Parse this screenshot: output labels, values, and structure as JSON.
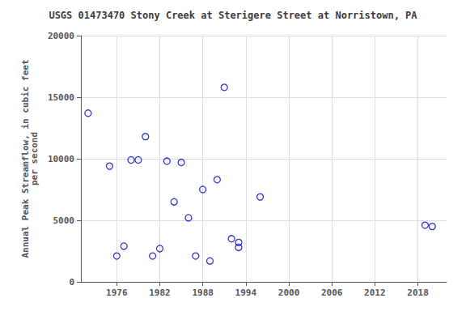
{
  "chart_data": {
    "type": "scatter",
    "title": "USGS 01473470 Stony Creek at Sterigere Street at Norristown, PA",
    "ylabel": "Annual Peak Streamflow, in cubic feet\nper second",
    "x": [
      1972,
      1975,
      1976,
      1977,
      1978,
      1979,
      1980,
      1981,
      1982,
      1983,
      1984,
      1985,
      1986,
      1987,
      1988,
      1989,
      1990,
      1991,
      1992,
      1993,
      1993,
      1996,
      2019,
      2020
    ],
    "values": [
      13700,
      9400,
      2100,
      2900,
      9900,
      9900,
      11800,
      2100,
      2700,
      9800,
      6500,
      9700,
      5200,
      2100,
      7500,
      1700,
      8300,
      15800,
      3500,
      3200,
      2800,
      6900,
      4600,
      4500
    ],
    "color": "#0000cc",
    "marker": "circle",
    "xlim": [
      1971,
      2022
    ],
    "xticks": [
      1976,
      1982,
      1988,
      1994,
      2000,
      2006,
      2012,
      2018
    ],
    "ylim": [
      0,
      20000
    ],
    "yticks": [
      0,
      5000,
      10000,
      15000,
      20000
    ],
    "grid": true
  }
}
